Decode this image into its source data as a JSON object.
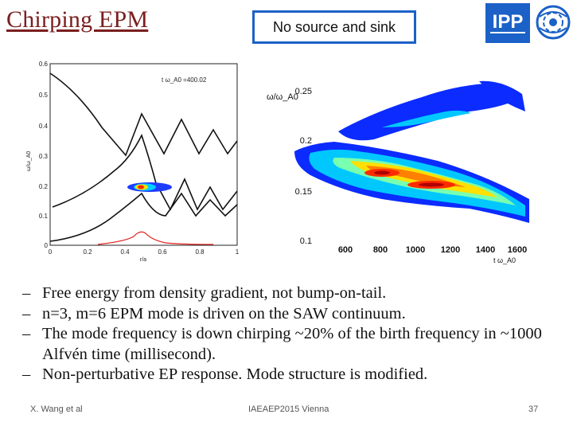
{
  "slide": {
    "title": "Chirping EPM",
    "boxed_label": "No source and sink"
  },
  "logos": {
    "ipp_text": "IPP",
    "ipp_color": "#1b61c7"
  },
  "figure_left": {
    "ylabel": "ω/ω_A0",
    "xlabel": "r/a",
    "annotation": "t ω_A0 =400.02",
    "y_ticks": [
      "0.6",
      "0.5",
      "0.4",
      "0.3",
      "0.2",
      "0.1",
      "0"
    ],
    "x_ticks": [
      "0",
      "0.2",
      "0.4",
      "0.6",
      "0.8",
      "1"
    ]
  },
  "figure_right": {
    "ylabel": "ω/ω_A0",
    "xlabel": "t ω_A0",
    "y_ticks": [
      "0.25",
      "0.2",
      "0.15",
      "0.1"
    ],
    "x_ticks": [
      "600",
      "800",
      "1000",
      "1200",
      "1400",
      "1600"
    ]
  },
  "bullets": [
    "Free energy from density gradient, not bump-on-tail.",
    "n=3, m=6 EPM mode is driven on the SAW continuum.",
    "The mode frequency is down chirping ~20% of the birth frequency in ~1000 Alfvén time (millisecond).",
    "Non-perturbative EP response. Mode structure is modified."
  ],
  "footer": {
    "author": "X. Wang et al",
    "conference": "IAEAEP2015 Vienna",
    "page": "37"
  }
}
